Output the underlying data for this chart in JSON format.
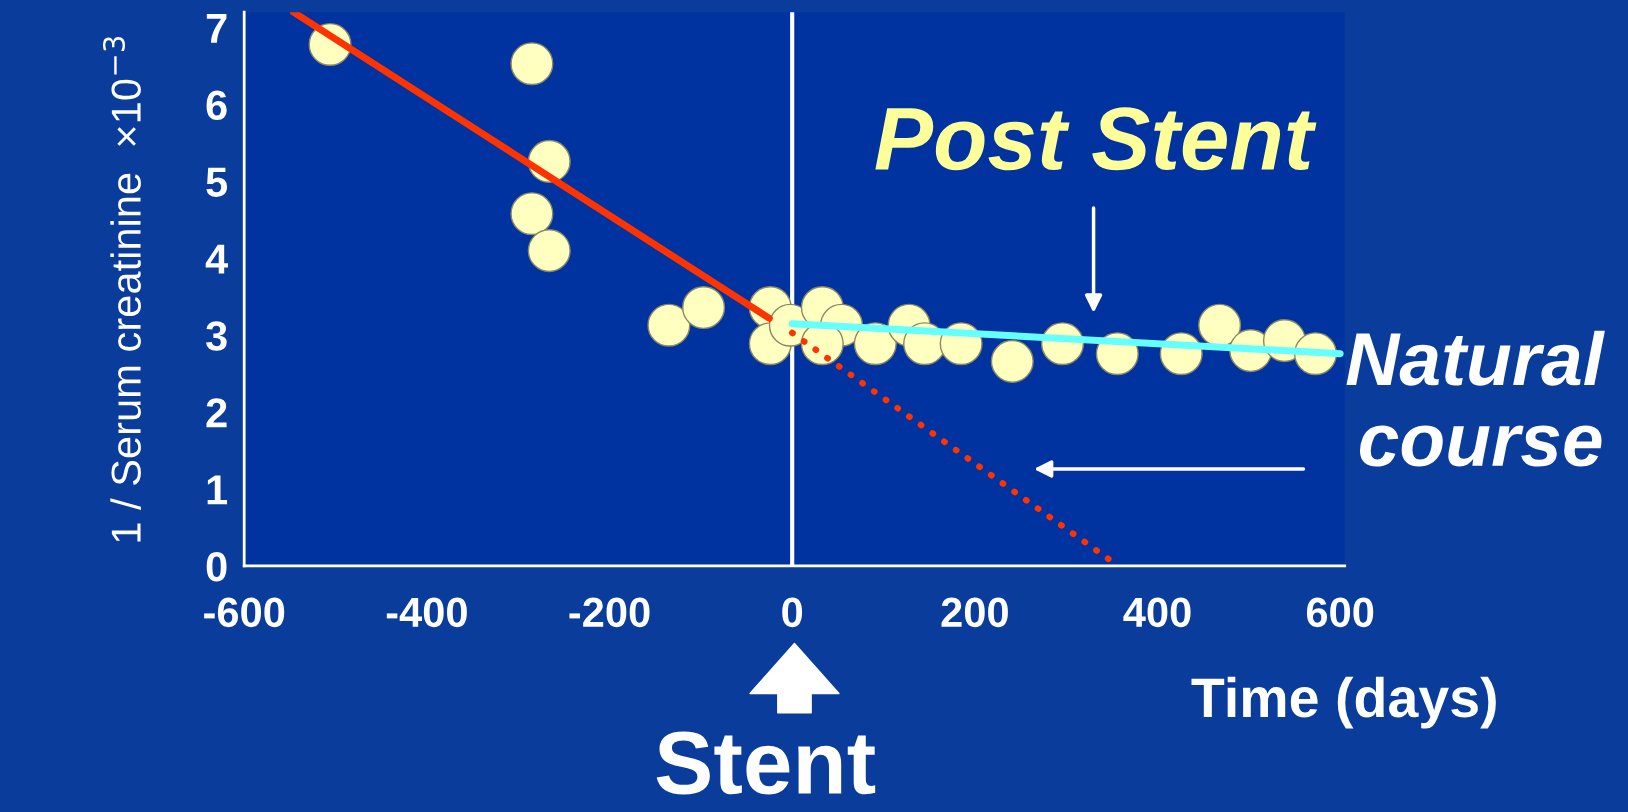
{
  "chart_data": {
    "type": "scatter",
    "ylabel": "1 / Serum creatinine  ×10$^{−3}$",
    "xlabel": "Time (days)",
    "x": [
      -506,
      -285,
      -266,
      -285,
      -266,
      -135,
      -97,
      -24,
      -24,
      -2,
      33,
      54,
      33,
      91,
      128,
      145,
      185,
      241,
      296,
      356,
      426,
      468,
      502,
      539,
      573
    ],
    "series": [
      {
        "color": "#ffffc0",
        "marker": "circle",
        "values": [
          6.78,
          6.53,
          5.26,
          4.58,
          4.1,
          3.13,
          3.36,
          3.36,
          2.89,
          3.13,
          3.36,
          3.13,
          2.89,
          2.89,
          3.13,
          2.89,
          2.89,
          2.66,
          2.89,
          2.76,
          2.76,
          3.13,
          2.8,
          2.93,
          2.76
        ]
      },
      {
        "type": "line",
        "color": "#ff3300",
        "line_style": "solid",
        "x": [
          -546,
          -25
        ],
        "values": [
          7.2,
          3.22
        ]
      },
      {
        "type": "line",
        "color": "#ff3300",
        "line_style": "dotted",
        "x": [
          0,
          357
        ],
        "values": [
          3.03,
          0
        ]
      },
      {
        "type": "line",
        "color": "#66ffff",
        "line_style": "solid",
        "x": [
          0,
          600
        ],
        "values": [
          3.15,
          2.76
        ]
      }
    ],
    "xlim": [
      -600,
      605
    ],
    "ylim": [
      0,
      7.2
    ],
    "xticks": [
      -600,
      -400,
      -200,
      0,
      200,
      400,
      600
    ],
    "yticks": [
      0,
      1,
      2,
      3,
      4,
      5,
      6,
      7
    ],
    "ref_lines": [
      {
        "axis": "x",
        "value": 0,
        "color": "#ffffff",
        "line_style": "solid"
      }
    ],
    "annotations": [
      {
        "text": "Post Stent",
        "x": 330,
        "y": 2.93
      },
      "Natural\ncourse",
      "Stent"
    ],
    "grid": false,
    "legend": false
  }
}
